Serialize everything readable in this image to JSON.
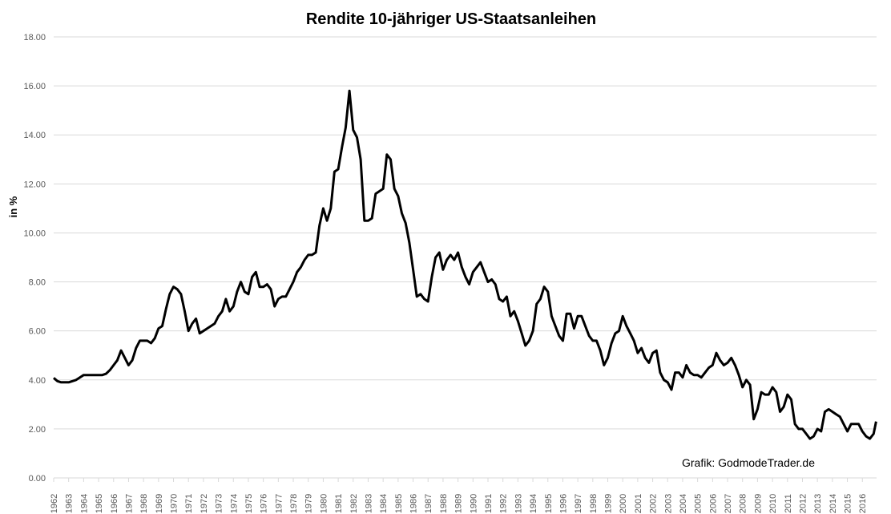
{
  "chart_data": {
    "type": "line",
    "title": "Rendite 10-jähriger US-Staatsanleihen",
    "y_label": "in %",
    "annotation": "Grafik: GodmodeTrader.de",
    "xlim": [
      1962,
      2016.95
    ],
    "xticks": [
      1962,
      1963,
      1964,
      1965,
      1966,
      1967,
      1968,
      1969,
      1970,
      1971,
      1972,
      1973,
      1974,
      1975,
      1976,
      1977,
      1978,
      1979,
      1980,
      1981,
      1982,
      1983,
      1984,
      1985,
      1986,
      1987,
      1988,
      1989,
      1990,
      1991,
      1992,
      1993,
      1994,
      1995,
      1996,
      1997,
      1998,
      1999,
      2000,
      2001,
      2002,
      2003,
      2004,
      2005,
      2006,
      2007,
      2008,
      2009,
      2010,
      2011,
      2012,
      2013,
      2014,
      2015,
      2016
    ],
    "ylim": [
      0,
      18
    ],
    "yticks": [
      {
        "value": 0,
        "label": "0.00"
      },
      {
        "value": 2,
        "label": "2.00"
      },
      {
        "value": 4,
        "label": "4.00"
      },
      {
        "value": 6,
        "label": "6.00"
      },
      {
        "value": 8,
        "label": "8.00"
      },
      {
        "value": 10,
        "label": "10.00"
      },
      {
        "value": 12,
        "label": "12.00"
      },
      {
        "value": 14,
        "label": "14.00"
      },
      {
        "value": 16,
        "label": "16.00"
      },
      {
        "value": 18,
        "label": "18.00"
      }
    ],
    "grid": true,
    "x": [
      1962,
      1962.25,
      1962.5,
      1962.75,
      1963,
      1963.25,
      1963.5,
      1963.75,
      1964,
      1964.25,
      1964.5,
      1964.75,
      1965,
      1965.25,
      1965.5,
      1965.75,
      1966,
      1966.25,
      1966.5,
      1966.75,
      1967,
      1967.25,
      1967.5,
      1967.75,
      1968,
      1968.25,
      1968.5,
      1968.75,
      1969,
      1969.25,
      1969.5,
      1969.75,
      1970,
      1970.25,
      1970.5,
      1970.75,
      1971,
      1971.25,
      1971.5,
      1971.75,
      1972,
      1972.25,
      1972.5,
      1972.75,
      1973,
      1973.25,
      1973.5,
      1973.75,
      1974,
      1974.25,
      1974.5,
      1974.75,
      1975,
      1975.25,
      1975.5,
      1975.75,
      1976,
      1976.25,
      1976.5,
      1976.75,
      1977,
      1977.25,
      1977.5,
      1977.75,
      1978,
      1978.25,
      1978.5,
      1978.75,
      1979,
      1979.25,
      1979.5,
      1979.75,
      1980,
      1980.25,
      1980.5,
      1980.75,
      1981,
      1981.25,
      1981.5,
      1981.75,
      1982,
      1982.25,
      1982.5,
      1982.75,
      1983,
      1983.25,
      1983.5,
      1983.75,
      1984,
      1984.25,
      1984.5,
      1984.75,
      1985,
      1985.25,
      1985.5,
      1985.75,
      1986,
      1986.25,
      1986.5,
      1986.75,
      1987,
      1987.25,
      1987.5,
      1987.75,
      1988,
      1988.25,
      1988.5,
      1988.75,
      1989,
      1989.25,
      1989.5,
      1989.75,
      1990,
      1990.25,
      1990.5,
      1990.75,
      1991,
      1991.25,
      1991.5,
      1991.75,
      1992,
      1992.25,
      1992.5,
      1992.75,
      1993,
      1993.25,
      1993.5,
      1993.75,
      1994,
      1994.25,
      1994.5,
      1994.75,
      1995,
      1995.25,
      1995.5,
      1995.75,
      1996,
      1996.25,
      1996.5,
      1996.75,
      1997,
      1997.25,
      1997.5,
      1997.75,
      1998,
      1998.25,
      1998.5,
      1998.75,
      1999,
      1999.25,
      1999.5,
      1999.75,
      2000,
      2000.25,
      2000.5,
      2000.75,
      2001,
      2001.25,
      2001.5,
      2001.75,
      2002,
      2002.25,
      2002.5,
      2002.75,
      2003,
      2003.25,
      2003.5,
      2003.75,
      2004,
      2004.25,
      2004.5,
      2004.75,
      2005,
      2005.25,
      2005.5,
      2005.75,
      2006,
      2006.25,
      2006.5,
      2006.75,
      2007,
      2007.25,
      2007.5,
      2007.75,
      2008,
      2008.25,
      2008.5,
      2008.75,
      2009,
      2009.25,
      2009.5,
      2009.75,
      2010,
      2010.25,
      2010.5,
      2010.75,
      2011,
      2011.25,
      2011.5,
      2011.75,
      2012,
      2012.25,
      2012.5,
      2012.75,
      2013,
      2013.25,
      2013.5,
      2013.75,
      2014,
      2014.25,
      2014.5,
      2014.75,
      2015,
      2015.25,
      2015.5,
      2015.75,
      2016,
      2016.25,
      2016.5,
      2016.75,
      2016.92
    ],
    "series": [
      {
        "name": "Rendite",
        "color": "#000000",
        "values": [
          4.08,
          3.95,
          3.9,
          3.9,
          3.9,
          3.95,
          4.0,
          4.1,
          4.2,
          4.2,
          4.2,
          4.2,
          4.2,
          4.2,
          4.25,
          4.4,
          4.6,
          4.8,
          5.2,
          4.9,
          4.6,
          4.8,
          5.3,
          5.6,
          5.6,
          5.6,
          5.5,
          5.7,
          6.1,
          6.2,
          6.9,
          7.5,
          7.8,
          7.7,
          7.5,
          6.8,
          6.0,
          6.3,
          6.5,
          5.9,
          6.0,
          6.1,
          6.2,
          6.3,
          6.6,
          6.8,
          7.3,
          6.8,
          7.0,
          7.6,
          8.0,
          7.6,
          7.5,
          8.2,
          8.4,
          7.8,
          7.8,
          7.9,
          7.7,
          7.0,
          7.3,
          7.4,
          7.4,
          7.7,
          8.0,
          8.4,
          8.6,
          8.9,
          9.1,
          9.1,
          9.2,
          10.3,
          11.0,
          10.5,
          11.0,
          12.5,
          12.6,
          13.5,
          14.3,
          15.8,
          14.2,
          13.9,
          13.0,
          10.5,
          10.5,
          10.6,
          11.6,
          11.7,
          11.8,
          13.2,
          13.0,
          11.8,
          11.5,
          10.8,
          10.4,
          9.6,
          8.5,
          7.4,
          7.5,
          7.3,
          7.2,
          8.2,
          9.0,
          9.2,
          8.5,
          8.9,
          9.1,
          8.9,
          9.2,
          8.6,
          8.2,
          7.9,
          8.4,
          8.6,
          8.8,
          8.4,
          8.0,
          8.1,
          7.9,
          7.3,
          7.2,
          7.4,
          6.6,
          6.8,
          6.4,
          5.9,
          5.4,
          5.6,
          6.0,
          7.1,
          7.3,
          7.8,
          7.6,
          6.6,
          6.2,
          5.8,
          5.6,
          6.7,
          6.7,
          6.1,
          6.6,
          6.6,
          6.2,
          5.8,
          5.6,
          5.6,
          5.2,
          4.6,
          4.9,
          5.5,
          5.9,
          6.0,
          6.6,
          6.2,
          5.9,
          5.6,
          5.1,
          5.3,
          4.9,
          4.7,
          5.1,
          5.2,
          4.3,
          4.0,
          3.9,
          3.6,
          4.3,
          4.3,
          4.1,
          4.6,
          4.3,
          4.2,
          4.2,
          4.1,
          4.3,
          4.5,
          4.6,
          5.1,
          4.8,
          4.6,
          4.7,
          4.9,
          4.6,
          4.2,
          3.7,
          4.0,
          3.8,
          2.4,
          2.8,
          3.5,
          3.4,
          3.4,
          3.7,
          3.5,
          2.7,
          2.9,
          3.4,
          3.2,
          2.2,
          2.0,
          2.0,
          1.8,
          1.6,
          1.7,
          2.0,
          1.9,
          2.7,
          2.8,
          2.7,
          2.6,
          2.5,
          2.2,
          1.9,
          2.2,
          2.2,
          2.2,
          1.9,
          1.7,
          1.6,
          1.8,
          2.3
        ]
      }
    ]
  }
}
